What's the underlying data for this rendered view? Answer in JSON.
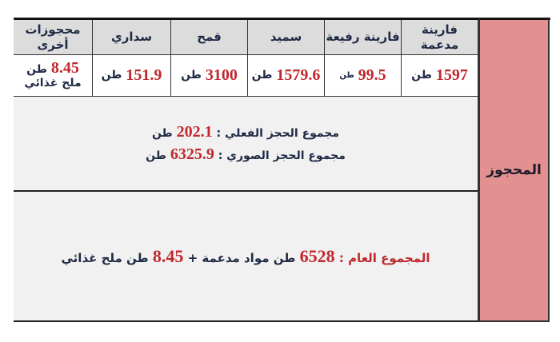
{
  "side_label": "المحجوز",
  "unit": "طن",
  "columns": [
    {
      "header": "فارينة مدعمة",
      "value": "1597"
    },
    {
      "header": "فارينة رفيعة",
      "value": "99.5"
    },
    {
      "header": "سميد",
      "value": "1579.6"
    },
    {
      "header": "قمح",
      "value": "3100"
    },
    {
      "header": "سداري",
      "value": "151.9"
    },
    {
      "header": "محجوزات أخرى",
      "value": "8.45",
      "note": "ملح غذائي"
    }
  ],
  "summary": {
    "actual_label": "مجموع الحجز الفعلي :",
    "actual_value": "202.1",
    "nominal_label": "مجموع الحجز الصوري :",
    "nominal_value": "6325.9"
  },
  "total": {
    "label": "المجموع العام :",
    "value1": "6528",
    "text1": "طن مواد مدعمة +",
    "value2": "8.45",
    "text2": "طن ملح غذائي"
  },
  "colors": {
    "accent_red": "#c0282d",
    "text_navy": "#1f2a44",
    "side_pink": "#e39090",
    "header_gray": "#dcdcdc"
  }
}
